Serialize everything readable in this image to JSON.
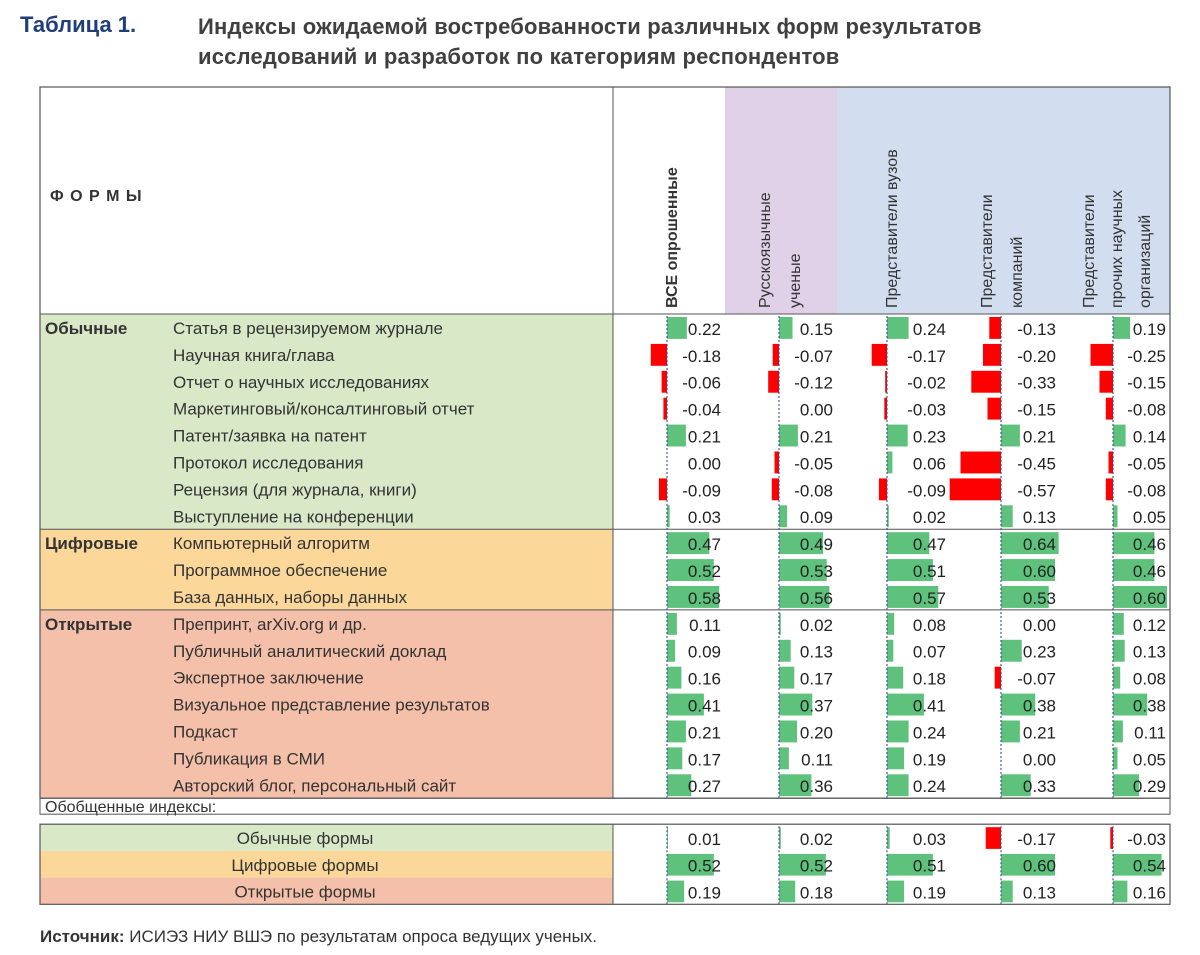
{
  "caption": {
    "label": "Таблица 1.",
    "title_line1": "Индексы ожидаемой востребованности различных форм результатов",
    "title_line2": "исследований и разработок по категориям респондентов"
  },
  "source": {
    "label": "Источник:",
    "text": " ИСИЭЗ НИУ ВШЭ по результатам опроса ведущих ученых."
  },
  "colors": {
    "positive_bar": "#5ec17c",
    "negative_bar": "#ff0000",
    "obychnye_bg": "#d9e8c7",
    "tsifrovye_bg": "#fbd79a",
    "otkrytye_bg": "#f5c0aa",
    "russian_header_bg": "#e0d1e9",
    "org_header_bg": "#d2def0",
    "axis_line": "#2b3a8c"
  },
  "chart_data": {
    "type": "table",
    "title": "Индексы ожидаемой востребованности различных форм результатов исследований и разработок по категориям респондентов",
    "row_header_label": "Ф О Р М Ы",
    "columns": [
      {
        "label_lines": [
          "ВСЕ опрошенные"
        ],
        "bold": true
      },
      {
        "label_lines": [
          "Русскоязычные",
          "ученые"
        ]
      },
      {
        "label_lines": [
          "Представители вузов"
        ]
      },
      {
        "label_lines": [
          "Представители",
          "компаний"
        ]
      },
      {
        "label_lines": [
          "Представители",
          "прочих научных",
          "организаций"
        ]
      }
    ],
    "groups": [
      {
        "name": "Обычные",
        "color_key": "obychnye_bg",
        "rows": [
          {
            "label": "Статья в рецензируемом журнале",
            "values": [
              0.22,
              0.15,
              0.24,
              -0.13,
              0.19
            ]
          },
          {
            "label": "Научная книга/глава",
            "values": [
              -0.18,
              -0.07,
              -0.17,
              -0.2,
              -0.25
            ]
          },
          {
            "label": "Отчет о научных исследованиях",
            "values": [
              -0.06,
              -0.12,
              -0.02,
              -0.33,
              -0.15
            ]
          },
          {
            "label": "Маркетинговый/консалтинговый отчет",
            "values": [
              -0.04,
              0.0,
              -0.03,
              -0.15,
              -0.08
            ]
          },
          {
            "label": "Патент/заявка на патент",
            "values": [
              0.21,
              0.21,
              0.23,
              0.21,
              0.14
            ]
          },
          {
            "label": "Протокол исследования",
            "values": [
              0.0,
              -0.05,
              0.06,
              -0.45,
              -0.05
            ]
          },
          {
            "label": "Рецензия (для журнала, книги)",
            "values": [
              -0.09,
              -0.08,
              -0.09,
              -0.57,
              -0.08
            ]
          },
          {
            "label": "Выступление на конференции",
            "values": [
              0.03,
              0.09,
              0.02,
              0.13,
              0.05
            ]
          }
        ]
      },
      {
        "name": "Цифровые",
        "color_key": "tsifrovye_bg",
        "rows": [
          {
            "label": "Компьютерный алгоритм",
            "values": [
              0.47,
              0.49,
              0.47,
              0.64,
              0.46
            ]
          },
          {
            "label": "Программное обеспечение",
            "values": [
              0.52,
              0.53,
              0.51,
              0.6,
              0.46
            ]
          },
          {
            "label": "База данных, наборы данных",
            "values": [
              0.58,
              0.56,
              0.57,
              0.53,
              0.6
            ]
          }
        ]
      },
      {
        "name": "Открытые",
        "color_key": "otkrytye_bg",
        "rows": [
          {
            "label": "Препринт, arXiv.org и др.",
            "values": [
              0.11,
              0.02,
              0.08,
              0.0,
              0.12
            ]
          },
          {
            "label": "Публичный аналитический доклад",
            "values": [
              0.09,
              0.13,
              0.07,
              0.23,
              0.13
            ]
          },
          {
            "label": "Экспертное заключение",
            "values": [
              0.16,
              0.17,
              0.18,
              -0.07,
              0.08
            ]
          },
          {
            "label": "Визуальное представление результатов",
            "values": [
              0.41,
              0.37,
              0.41,
              0.38,
              0.38
            ]
          },
          {
            "label": "Подкаст",
            "values": [
              0.21,
              0.2,
              0.24,
              0.21,
              0.11
            ]
          },
          {
            "label": "Публикация в СМИ",
            "values": [
              0.17,
              0.11,
              0.19,
              0.0,
              0.05
            ]
          },
          {
            "label": "Авторский блог, персональный сайт",
            "values": [
              0.27,
              0.36,
              0.24,
              0.33,
              0.29
            ]
          }
        ]
      }
    ],
    "summary_label": "Обобщенные индексы:",
    "summary_rows": [
      {
        "label": "Обычные формы",
        "color_key": "obychnye_bg",
        "values": [
          0.01,
          0.02,
          0.03,
          -0.17,
          -0.03
        ]
      },
      {
        "label": "Цифровые формы",
        "color_key": "tsifrovye_bg",
        "values": [
          0.52,
          0.52,
          0.51,
          0.6,
          0.54
        ]
      },
      {
        "label": "Открытые формы",
        "color_key": "otkrytye_bg",
        "values": [
          0.19,
          0.18,
          0.19,
          0.13,
          0.16
        ]
      }
    ]
  }
}
